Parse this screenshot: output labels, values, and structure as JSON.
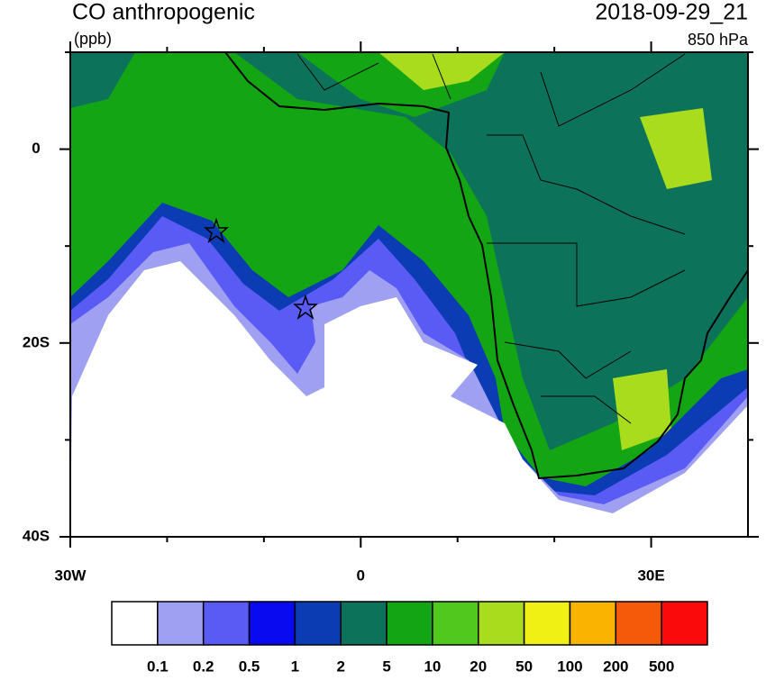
{
  "header": {
    "title": "CO anthropogenic",
    "units": "(ppb)",
    "time": "2018-09-29_21",
    "level": "850 hPa"
  },
  "map": {
    "xlim": [
      -30,
      40
    ],
    "ylim": [
      -40,
      10
    ],
    "xticks": [
      {
        "value": -30,
        "label": "30W"
      },
      0,
      {
        "value": 30,
        "label": "30E"
      }
    ],
    "xminorticks": [
      -20,
      -10,
      10,
      20
    ],
    "yticks": [
      0,
      {
        "value": -20,
        "label": "20S"
      },
      {
        "value": -40,
        "label": "40S"
      }
    ],
    "yminorticks": [
      10,
      -10,
      -30
    ]
  },
  "colorbar": {
    "levels": [
      0.1,
      0.2,
      0.5,
      1,
      2,
      5,
      10,
      20,
      50,
      100,
      200,
      500
    ],
    "colors": [
      "#ffffff",
      "#a0a0f2",
      "#5a5af5",
      "#0a0af0",
      "#0c3cb4",
      "#0c735a",
      "#14a514",
      "#50c81e",
      "#aadc1e",
      "#f0f014",
      "#fab400",
      "#f55a0a",
      "#fa0a0a"
    ]
  }
}
